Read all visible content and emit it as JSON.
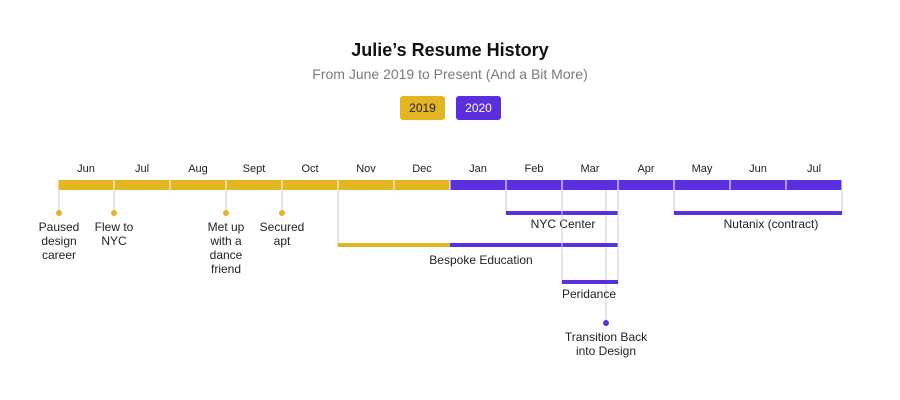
{
  "header": {
    "title": "Julie’s Resume History",
    "subtitle": "From June 2019 to Present (And a Bit More)"
  },
  "legend": [
    {
      "label": "2019",
      "color": "#e2b521",
      "text_color": "#222222"
    },
    {
      "label": "2020",
      "color": "#5b2ee0",
      "text_color": "#ffffff"
    }
  ],
  "colors": {
    "year2019": "#e2b521",
    "year2020": "#5b2ee0",
    "connector": "#cccccc"
  },
  "months": [
    {
      "label": "Jun",
      "year": 2019
    },
    {
      "label": "Jul",
      "year": 2019
    },
    {
      "label": "Aug",
      "year": 2019
    },
    {
      "label": "Sept",
      "year": 2019
    },
    {
      "label": "Oct",
      "year": 2019
    },
    {
      "label": "Nov",
      "year": 2019
    },
    {
      "label": "Dec",
      "year": 2019
    },
    {
      "label": "Jan",
      "year": 2020
    },
    {
      "label": "Feb",
      "year": 2020
    },
    {
      "label": "Mar",
      "year": 2020
    },
    {
      "label": "Apr",
      "year": 2020
    },
    {
      "label": "May",
      "year": 2020
    },
    {
      "label": "Jun",
      "year": 2020
    },
    {
      "label": "Jul",
      "year": 2020
    }
  ],
  "events": [
    {
      "lines": [
        "Paused",
        "design",
        "career"
      ],
      "month": "Jun 2019",
      "year": 2019
    },
    {
      "lines": [
        "Flew to",
        "NYC"
      ],
      "month": "Jul 2019",
      "year": 2019
    },
    {
      "lines": [
        "Met up",
        "with a",
        "dance",
        "friend"
      ],
      "month": "Sept 2019",
      "year": 2019
    },
    {
      "lines": [
        "Secured",
        "apt"
      ],
      "month": "Oct 2019",
      "year": 2019
    },
    {
      "lines": [
        "Transition Back",
        "into Design"
      ],
      "month": "Mar 2020",
      "year": 2020
    }
  ],
  "periods": [
    {
      "label": "NYC Center",
      "start": "Feb 2020",
      "end": "Mar 2020"
    },
    {
      "label": "Bespoke Education",
      "start": "Nov 2019",
      "end": "Mar 2020"
    },
    {
      "label": "Peridance",
      "start": "Mar 2020",
      "end": "Mar 2020"
    },
    {
      "label": "Nutanix (contract)",
      "start": "May 2020",
      "end": "Jul 2020"
    }
  ]
}
